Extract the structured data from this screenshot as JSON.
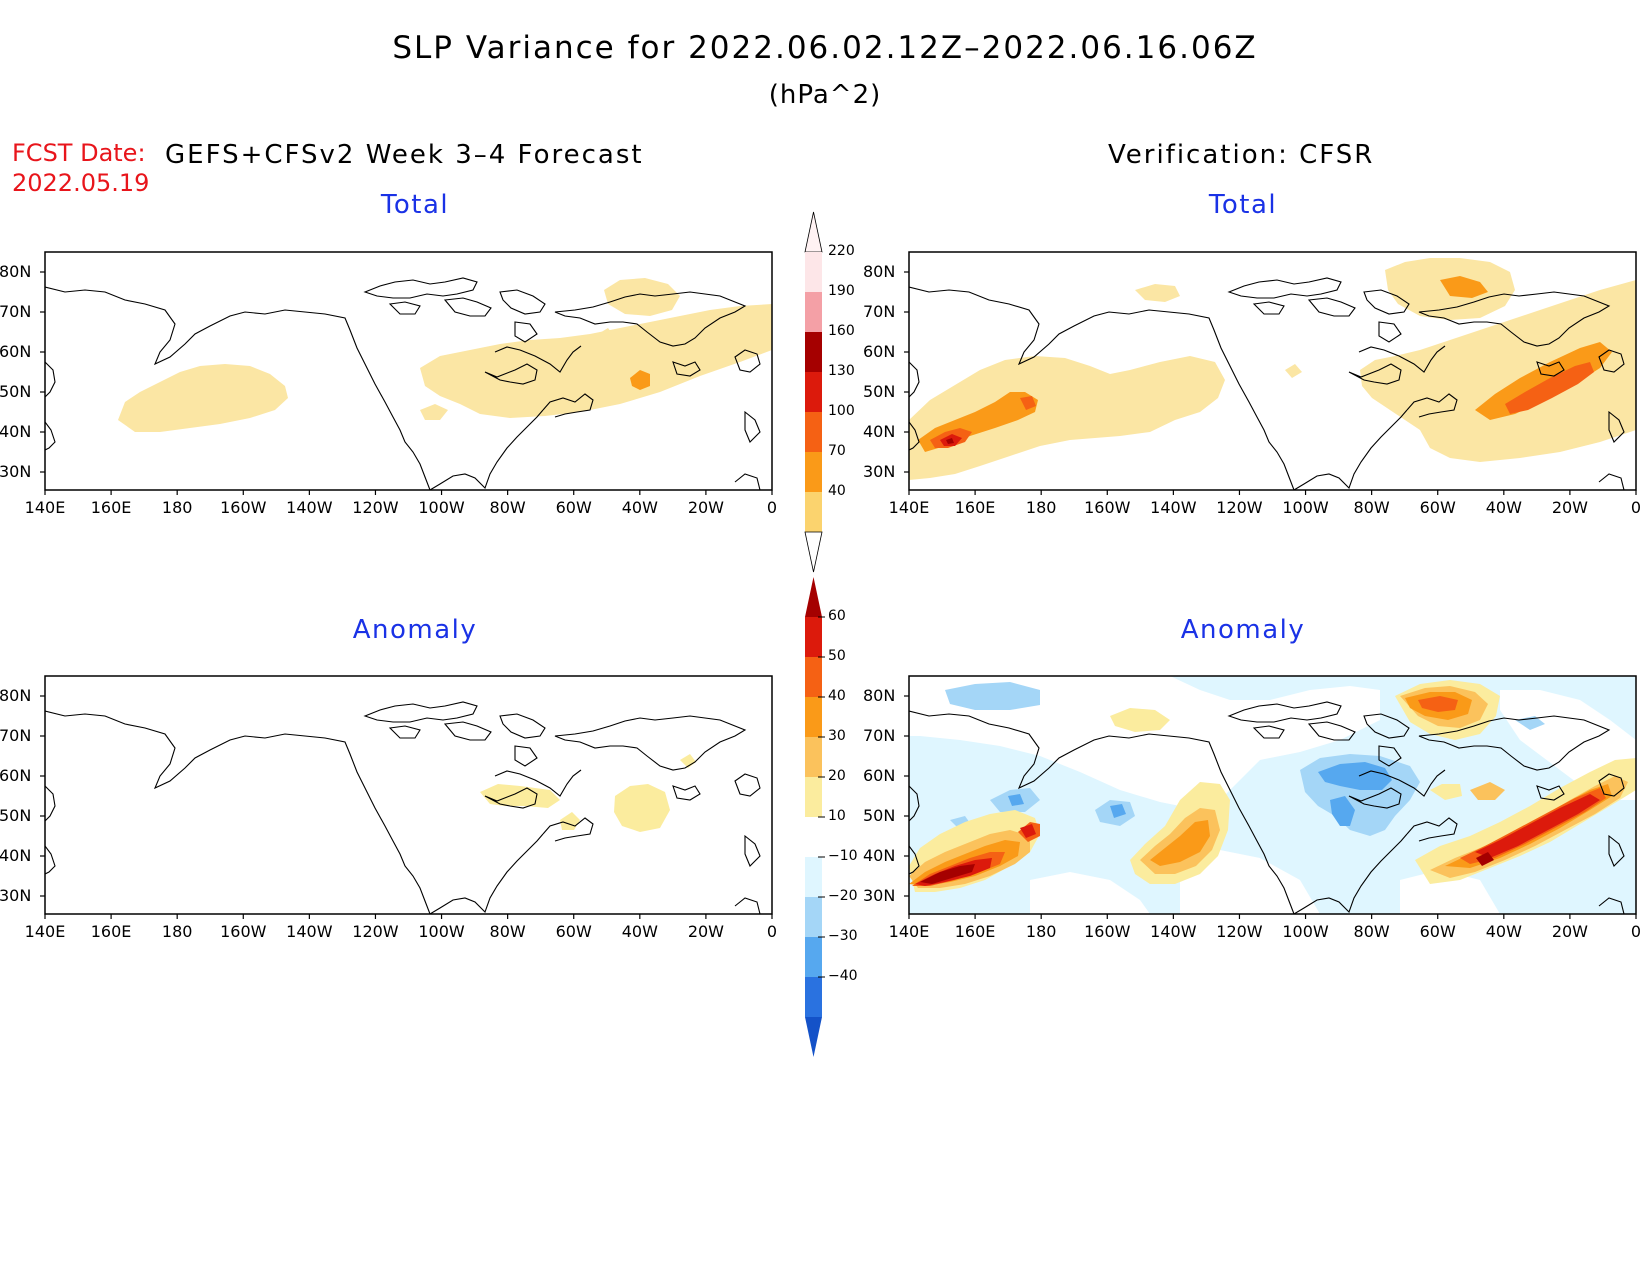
{
  "title": "SLP Variance for 2022.06.02.12Z–2022.06.16.06Z",
  "units": "(hPa^2)",
  "fcst_date_label": "FCST Date:",
  "fcst_date": "2022.05.19",
  "left_header": "GEFS+CFSv2 Week 3–4 Forecast",
  "right_header": "Verification: CFSR",
  "panels": [
    {
      "title": "Total"
    },
    {
      "title": "Total"
    },
    {
      "title": "Anomaly"
    },
    {
      "title": "Anomaly"
    }
  ],
  "lat_labels": [
    "80N",
    "70N",
    "60N",
    "50N",
    "40N",
    "30N"
  ],
  "lon_labels": [
    "140E",
    "160E",
    "180",
    "160W",
    "140W",
    "120W",
    "100W",
    "80W",
    "60W",
    "40W",
    "20W",
    "0"
  ],
  "colorbar_total": {
    "labels": [
      "220",
      "190",
      "160",
      "130",
      "100",
      "70",
      "40"
    ],
    "colors": [
      "#fde6e8",
      "#f4a0a6",
      "#a50000",
      "#dc1a0c",
      "#f56114",
      "#fa9a18",
      "#fbd36e"
    ]
  },
  "colorbar_anomaly": {
    "labels": [
      "60",
      "50",
      "40",
      "30",
      "20",
      "10",
      "−10",
      "−20",
      "−30",
      "−40"
    ],
    "colors": [
      "#a50000",
      "#dc1a0c",
      "#f56114",
      "#fa9a18",
      "#fbc25c",
      "#fbec9e",
      "#ffffff",
      "#dff6ff",
      "#a4d6f7",
      "#56a8ef",
      "#2a72e0",
      "#1452c8"
    ]
  }
}
